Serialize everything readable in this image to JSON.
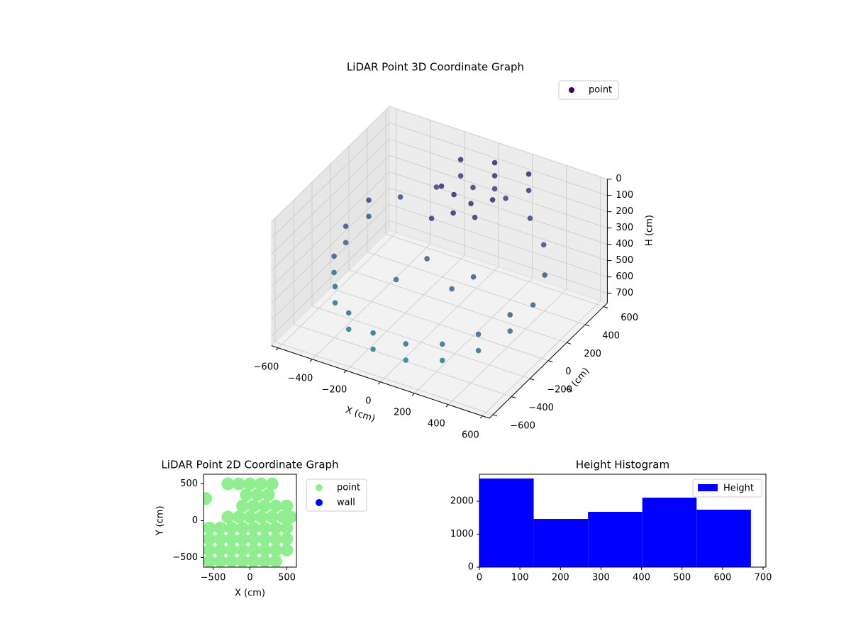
{
  "chart_data": [
    {
      "type": "scatter3d",
      "title": "LiDAR Point 3D Coordinate Graph",
      "xlabel": "X (cm)",
      "ylabel": "Y (cm)",
      "zlabel": "H (cm)",
      "xlim": [
        -640,
        640
      ],
      "ylim": [
        -640,
        640
      ],
      "zlim": [
        0,
        760
      ],
      "xticks": [
        {
          "value": -600,
          "label": "−600"
        },
        {
          "value": -400,
          "label": "−400"
        },
        {
          "value": -200,
          "label": "−200"
        },
        0,
        200,
        400,
        600
      ],
      "yticks": [
        {
          "value": -600,
          "label": "−600"
        },
        {
          "value": -400,
          "label": "−400"
        },
        {
          "value": -200,
          "label": "−200"
        },
        0,
        200,
        400,
        600
      ],
      "zticks": [
        0,
        100,
        200,
        300,
        400,
        500,
        600,
        700
      ],
      "grid": true,
      "legend": "upper right",
      "colormap": "viridis",
      "series": [
        {
          "name": "point",
          "color": "#440154",
          "x": [
            550,
            517,
            421,
            275,
            96,
            -96,
            -275,
            -421,
            -517,
            -550,
            -517,
            -421,
            -275,
            -96,
            96,
            275,
            421,
            517,
            -517,
            -550,
            -517,
            -421,
            -275,
            -96,
            96,
            275,
            421,
            517,
            -50,
            50,
            150,
            -150,
            0,
            100,
            -100,
            0,
            0,
            0,
            200,
            200,
            -200,
            -200,
            -200,
            100,
            200,
            -100
          ],
          "y": [
            0,
            188,
            354,
            476,
            542,
            542,
            476,
            354,
            188,
            0,
            -188,
            -354,
            -476,
            -542,
            -542,
            -476,
            -354,
            -188,
            188,
            0,
            -188,
            -354,
            -476,
            -542,
            -542,
            -476,
            -354,
            -188,
            250,
            250,
            300,
            300,
            150,
            200,
            100,
            600,
            600,
            600,
            600,
            600,
            600,
            600,
            -100,
            -50,
            0,
            50
          ],
          "z": [
            450,
            382,
            321,
            277,
            253,
            253,
            277,
            321,
            382,
            450,
            518,
            579,
            623,
            647,
            647,
            623,
            579,
            518,
            282,
            350,
            418,
            479,
            523,
            547,
            547,
            523,
            479,
            418,
            120,
            140,
            110,
            130,
            160,
            180,
            200,
            100,
            180,
            260,
            100,
            200,
            150,
            250,
            500,
            480,
            400,
            420
          ]
        }
      ]
    },
    {
      "type": "scatter",
      "title": "LiDAR Point 2D Coordinate Graph",
      "xlabel": "X (cm)",
      "ylabel": "Y (cm)",
      "xlim": [
        -630,
        630
      ],
      "ylim": [
        -630,
        630
      ],
      "xticks": [
        {
          "value": -500,
          "label": "−500"
        },
        0,
        500
      ],
      "yticks": [
        {
          "value": -500,
          "label": "−500"
        },
        0,
        500
      ],
      "legend": "outside right",
      "series": [
        {
          "name": "point",
          "color": "#90ee90",
          "x": [
            -550,
            -400,
            -250,
            -100,
            50,
            200,
            350,
            -550,
            -400,
            -250,
            -100,
            50,
            200,
            350,
            500,
            -550,
            -400,
            -250,
            -100,
            50,
            200,
            350,
            500,
            -550,
            -400,
            -250,
            -100,
            50,
            200,
            350,
            500,
            -300,
            -150,
            0,
            150,
            300,
            450,
            550,
            -100,
            50,
            200,
            350,
            500,
            -50,
            100,
            250,
            -300,
            -150,
            0,
            150,
            300,
            -600
          ],
          "y": [
            -550,
            -550,
            -550,
            -550,
            -550,
            -550,
            -550,
            -400,
            -400,
            -400,
            -400,
            -400,
            -400,
            -400,
            -400,
            -250,
            -250,
            -250,
            -250,
            -250,
            -250,
            -250,
            -250,
            -100,
            -100,
            -100,
            -100,
            -100,
            -100,
            -100,
            -100,
            50,
            50,
            50,
            50,
            50,
            50,
            50,
            200,
            200,
            200,
            200,
            200,
            350,
            350,
            350,
            500,
            500,
            500,
            500,
            500,
            300
          ]
        },
        {
          "name": "wall",
          "color": "#0000ff",
          "x": [],
          "y": []
        }
      ]
    },
    {
      "type": "histogram",
      "title": "Height Histogram",
      "name": "Height",
      "color": "#0000ff",
      "bins": [
        0,
        134,
        268,
        402,
        536,
        670
      ],
      "counts": [
        2688,
        1462,
        1677,
        2108,
        1742
      ],
      "xlim": [
        0,
        707
      ],
      "ylim": [
        0,
        2817
      ],
      "xticks": [
        0,
        100,
        200,
        300,
        400,
        500,
        600,
        700
      ],
      "yticks": [
        0,
        1000,
        2000
      ],
      "legend": "upper right"
    }
  ]
}
